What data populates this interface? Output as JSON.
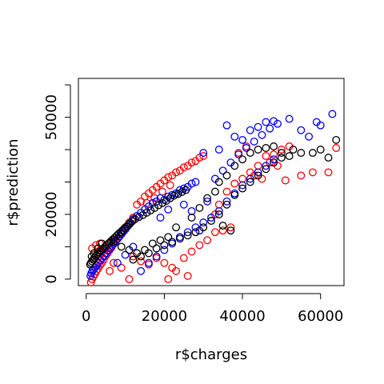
{
  "chart_data": {
    "type": "scatter",
    "title": "",
    "xlabel": "r$charges",
    "ylabel": "r$prediction",
    "xlim": [
      -2000,
      66000
    ],
    "ylim": [
      -2000,
      62000
    ],
    "grid": false,
    "legend": "none",
    "x_ticks": [
      {
        "value": 0,
        "label": "0"
      },
      {
        "value": 20000,
        "label": "20000"
      },
      {
        "value": 40000,
        "label": "40000"
      },
      {
        "value": 60000,
        "label": "60000"
      }
    ],
    "y_ticks": [
      {
        "value": 0,
        "label": "0"
      },
      {
        "value": 10000,
        "label": ""
      },
      {
        "value": 20000,
        "label": "20000"
      },
      {
        "value": 30000,
        "label": ""
      },
      {
        "value": 40000,
        "label": ""
      },
      {
        "value": 50000,
        "label": "50000"
      },
      {
        "value": 60000,
        "label": ""
      }
    ],
    "series": [
      {
        "color": "#ff0000",
        "points": [
          [
            1200,
            -1000
          ],
          [
            1500,
            0
          ],
          [
            1800,
            800
          ],
          [
            2200,
            1500
          ],
          [
            2600,
            2500
          ],
          [
            3000,
            3200
          ],
          [
            3500,
            4200
          ],
          [
            4000,
            5000
          ],
          [
            4500,
            6000
          ],
          [
            5000,
            7200
          ],
          [
            5500,
            8000
          ],
          [
            6000,
            9000
          ],
          [
            6500,
            9800
          ],
          [
            7000,
            10800
          ],
          [
            7500,
            11500
          ],
          [
            8000,
            12500
          ],
          [
            8500,
            13200
          ],
          [
            9000,
            14200
          ],
          [
            9500,
            15000
          ],
          [
            10000,
            16000
          ],
          [
            11000,
            17500
          ],
          [
            12000,
            19000
          ],
          [
            2000,
            6000
          ],
          [
            3000,
            7000
          ],
          [
            4000,
            8500
          ],
          [
            5000,
            9500
          ],
          [
            6000,
            11000
          ],
          [
            7000,
            12000
          ],
          [
            1500,
            9500
          ],
          [
            2500,
            10500
          ],
          [
            3500,
            11000
          ],
          [
            13000,
            23000
          ],
          [
            14000,
            24000
          ],
          [
            15000,
            25500
          ],
          [
            16000,
            26500
          ],
          [
            17000,
            27500
          ],
          [
            18000,
            28500
          ],
          [
            19000,
            29500
          ],
          [
            20000,
            30500
          ],
          [
            21000,
            31500
          ],
          [
            22000,
            32000
          ],
          [
            23000,
            33000
          ],
          [
            24000,
            33500
          ],
          [
            25000,
            34500
          ],
          [
            26000,
            35000
          ],
          [
            27000,
            36000
          ],
          [
            28000,
            36500
          ],
          [
            29000,
            37500
          ],
          [
            30000,
            38000
          ],
          [
            15500,
            23500
          ],
          [
            17500,
            25000
          ],
          [
            19500,
            27000
          ],
          [
            21500,
            29000
          ],
          [
            12000,
            7000
          ],
          [
            14000,
            5500
          ],
          [
            16000,
            4500
          ],
          [
            18000,
            6500
          ],
          [
            20000,
            5000
          ],
          [
            22000,
            3500
          ],
          [
            21000,
            0
          ],
          [
            23000,
            2500
          ],
          [
            26000,
            1000
          ],
          [
            25000,
            6500
          ],
          [
            27000,
            8500
          ],
          [
            29000,
            10500
          ],
          [
            31000,
            12000
          ],
          [
            33000,
            14500
          ],
          [
            35000,
            15000
          ],
          [
            37000,
            16000
          ],
          [
            33000,
            20000
          ],
          [
            34000,
            23000
          ],
          [
            36000,
            27000
          ],
          [
            38000,
            29500
          ],
          [
            40000,
            31000
          ],
          [
            42000,
            33000
          ],
          [
            44000,
            35000
          ],
          [
            46000,
            38000
          ],
          [
            48000,
            38500
          ],
          [
            50000,
            40000
          ],
          [
            52000,
            41000
          ],
          [
            49000,
            35000
          ],
          [
            51000,
            30500
          ],
          [
            55000,
            32000
          ],
          [
            58000,
            33000
          ],
          [
            62000,
            33000
          ],
          [
            64000,
            40500
          ],
          [
            45000,
            31000
          ],
          [
            43000,
            32000
          ],
          [
            47000,
            36000
          ],
          [
            11000,
            0
          ],
          [
            9000,
            3500
          ],
          [
            7000,
            5000
          ],
          [
            6000,
            2500
          ],
          [
            39000,
            39000
          ],
          [
            41000,
            41000
          ]
        ]
      },
      {
        "color": "#0000ff",
        "points": [
          [
            1100,
            1000
          ],
          [
            1300,
            1800
          ],
          [
            1600,
            2500
          ],
          [
            1900,
            3000
          ],
          [
            2300,
            3600
          ],
          [
            2700,
            4200
          ],
          [
            3100,
            5000
          ],
          [
            3600,
            5800
          ],
          [
            4100,
            6500
          ],
          [
            4600,
            7200
          ],
          [
            5100,
            8000
          ],
          [
            5600,
            8800
          ],
          [
            6100,
            9500
          ],
          [
            6600,
            10300
          ],
          [
            7100,
            11000
          ],
          [
            7600,
            11800
          ],
          [
            8100,
            12500
          ],
          [
            8600,
            13300
          ],
          [
            9100,
            14000
          ],
          [
            9600,
            14800
          ],
          [
            10100,
            15500
          ],
          [
            10600,
            16300
          ],
          [
            11100,
            17000
          ],
          [
            12000,
            18500
          ],
          [
            13000,
            19500
          ],
          [
            14000,
            20500
          ],
          [
            15000,
            21500
          ],
          [
            16000,
            22500
          ],
          [
            17000,
            23500
          ],
          [
            18000,
            24000
          ],
          [
            19000,
            25000
          ],
          [
            20000,
            24500
          ],
          [
            21000,
            25500
          ],
          [
            22000,
            26000
          ],
          [
            23000,
            26500
          ],
          [
            24000,
            27500
          ],
          [
            25000,
            28000
          ],
          [
            26000,
            28500
          ],
          [
            27000,
            29500
          ],
          [
            28000,
            30000
          ],
          [
            14000,
            2500
          ],
          [
            16000,
            5000
          ],
          [
            18000,
            7000
          ],
          [
            20000,
            9000
          ],
          [
            22000,
            11000
          ],
          [
            24000,
            13000
          ],
          [
            26000,
            14500
          ],
          [
            28000,
            16000
          ],
          [
            30000,
            17500
          ],
          [
            32000,
            19000
          ],
          [
            34000,
            21000
          ],
          [
            36000,
            24000
          ],
          [
            38000,
            26500
          ],
          [
            40000,
            29000
          ],
          [
            42000,
            31000
          ],
          [
            44000,
            33000
          ],
          [
            46000,
            35000
          ],
          [
            48000,
            37000
          ],
          [
            33000,
            31000
          ],
          [
            35000,
            33500
          ],
          [
            37000,
            36000
          ],
          [
            39000,
            38500
          ],
          [
            41000,
            40500
          ],
          [
            43000,
            42500
          ],
          [
            45000,
            44500
          ],
          [
            47000,
            46500
          ],
          [
            49000,
            48000
          ],
          [
            36000,
            47500
          ],
          [
            42000,
            46000
          ],
          [
            44000,
            47000
          ],
          [
            46000,
            48500
          ],
          [
            48000,
            48800
          ],
          [
            52000,
            49500
          ],
          [
            55000,
            46000
          ],
          [
            57000,
            44000
          ],
          [
            59000,
            48500
          ],
          [
            60000,
            47500
          ],
          [
            63000,
            51000
          ],
          [
            38000,
            44000
          ],
          [
            40000,
            43000
          ],
          [
            34000,
            40000
          ],
          [
            30000,
            39000
          ],
          [
            25000,
            23000
          ],
          [
            27000,
            21000
          ],
          [
            29000,
            15000
          ],
          [
            31000,
            24000
          ],
          [
            19000,
            19000
          ],
          [
            21000,
            21500
          ],
          [
            8000,
            5000
          ],
          [
            10000,
            7500
          ],
          [
            12000,
            10000
          ]
        ]
      },
      {
        "color": "#000000",
        "points": [
          [
            1000,
            4500
          ],
          [
            1200,
            5000
          ],
          [
            1500,
            5500
          ],
          [
            1800,
            6000
          ],
          [
            2100,
            6600
          ],
          [
            2500,
            7200
          ],
          [
            2900,
            7800
          ],
          [
            3300,
            8300
          ],
          [
            3800,
            8900
          ],
          [
            4300,
            9400
          ],
          [
            4800,
            10000
          ],
          [
            5300,
            10600
          ],
          [
            5800,
            11100
          ],
          [
            6300,
            11700
          ],
          [
            6800,
            12300
          ],
          [
            7300,
            12800
          ],
          [
            7800,
            13400
          ],
          [
            8300,
            14000
          ],
          [
            8800,
            14500
          ],
          [
            9300,
            15100
          ],
          [
            9800,
            15700
          ],
          [
            10300,
            16200
          ],
          [
            10800,
            16800
          ],
          [
            11300,
            17300
          ],
          [
            11800,
            17900
          ],
          [
            12500,
            18500
          ],
          [
            13500,
            19200
          ],
          [
            14500,
            19800
          ],
          [
            15500,
            20500
          ],
          [
            16500,
            21200
          ],
          [
            17500,
            22000
          ],
          [
            18500,
            22800
          ],
          [
            19500,
            23500
          ],
          [
            20500,
            24200
          ],
          [
            21500,
            25000
          ],
          [
            22500,
            25800
          ],
          [
            23500,
            26300
          ],
          [
            24500,
            26900
          ],
          [
            25500,
            27500
          ],
          [
            1400,
            7000
          ],
          [
            2000,
            8000
          ],
          [
            3000,
            9500
          ],
          [
            4000,
            11000
          ],
          [
            12000,
            6000
          ],
          [
            14000,
            7000
          ],
          [
            16000,
            8000
          ],
          [
            18000,
            9500
          ],
          [
            20000,
            10500
          ],
          [
            22000,
            11500
          ],
          [
            24000,
            12500
          ],
          [
            26000,
            13500
          ],
          [
            28000,
            14500
          ],
          [
            30000,
            16000
          ],
          [
            32000,
            18000
          ],
          [
            34000,
            20000
          ],
          [
            35000,
            16500
          ],
          [
            37000,
            15000
          ],
          [
            36000,
            23000
          ],
          [
            38000,
            26000
          ],
          [
            40000,
            28000
          ],
          [
            42000,
            30000
          ],
          [
            44000,
            32000
          ],
          [
            46000,
            34000
          ],
          [
            48000,
            36000
          ],
          [
            50000,
            37500
          ],
          [
            34000,
            30000
          ],
          [
            36000,
            32000
          ],
          [
            38000,
            35000
          ],
          [
            40000,
            37000
          ],
          [
            42000,
            39000
          ],
          [
            44000,
            40000
          ],
          [
            46000,
            40500
          ],
          [
            48000,
            41000
          ],
          [
            50000,
            39000
          ],
          [
            52000,
            38000
          ],
          [
            53000,
            40000
          ],
          [
            55000,
            39000
          ],
          [
            58000,
            39000
          ],
          [
            60000,
            40000
          ],
          [
            62000,
            37500
          ],
          [
            64000,
            43000
          ],
          [
            33000,
            27000
          ],
          [
            31000,
            25000
          ],
          [
            29000,
            22000
          ],
          [
            27000,
            19000
          ],
          [
            23000,
            16000
          ],
          [
            21000,
            13000
          ],
          [
            19000,
            12000
          ],
          [
            17000,
            11000
          ],
          [
            15000,
            9000
          ],
          [
            13000,
            8000
          ],
          [
            11000,
            9000
          ],
          [
            9000,
            10000
          ],
          [
            7000,
            11500
          ]
        ]
      }
    ]
  }
}
